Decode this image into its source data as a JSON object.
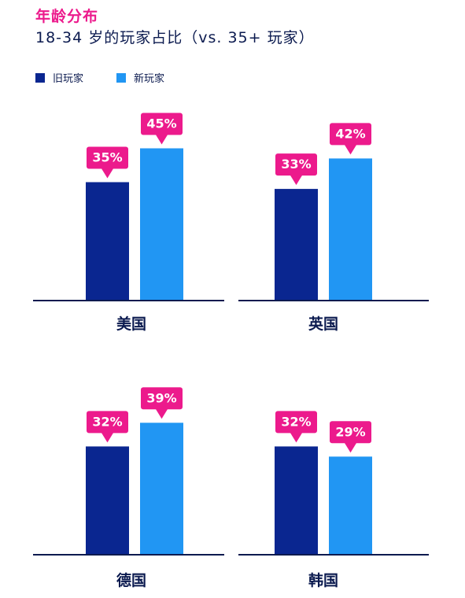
{
  "header": {
    "title": "年龄分布",
    "subtitle": "18-34 岁的玩家占比（vs. 35+ 玩家）"
  },
  "colors": {
    "accent": "#ec1a8c",
    "old_series": "#0a2690",
    "new_series": "#2196f3",
    "axis": "#0b1a4f"
  },
  "legend": [
    {
      "name": "旧玩家",
      "color": "#0a2690"
    },
    {
      "name": "新玩家",
      "color": "#2196f3"
    }
  ],
  "chart_data": [
    {
      "type": "bar",
      "title": "美国",
      "categories": [
        "旧玩家",
        "新玩家"
      ],
      "values": [
        35,
        45
      ],
      "labels": [
        "35%",
        "45%"
      ],
      "ylim": [
        0,
        60
      ]
    },
    {
      "type": "bar",
      "title": "英国",
      "categories": [
        "旧玩家",
        "新玩家"
      ],
      "values": [
        33,
        42
      ],
      "labels": [
        "33%",
        "42%"
      ],
      "ylim": [
        0,
        60
      ]
    },
    {
      "type": "bar",
      "title": "德国",
      "categories": [
        "旧玩家",
        "新玩家"
      ],
      "values": [
        32,
        39
      ],
      "labels": [
        "32%",
        "39%"
      ],
      "ylim": [
        0,
        60
      ]
    },
    {
      "type": "bar",
      "title": "韩国",
      "categories": [
        "旧玩家",
        "新玩家"
      ],
      "values": [
        32,
        29
      ],
      "labels": [
        "32%",
        "29%"
      ],
      "ylim": [
        0,
        60
      ]
    }
  ]
}
